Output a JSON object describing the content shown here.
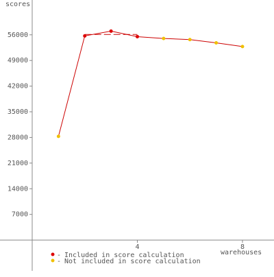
{
  "chart_data": {
    "type": "line",
    "y_label": "scores",
    "x_label": "warehouses",
    "x": [
      1,
      2,
      3,
      4,
      5,
      6,
      7,
      8
    ],
    "values": [
      28300,
      55700,
      57000,
      55500,
      55000,
      54700,
      53800,
      52800
    ],
    "included": [
      false,
      true,
      true,
      true,
      false,
      false,
      false,
      false
    ],
    "line_color": "#cc0000",
    "score": 56100,
    "legend": [
      {
        "name": "Included in score calculation",
        "color": "#dd0000"
      },
      {
        "name": "Not included in score calculation",
        "color": "#f0c000"
      }
    ],
    "xlim": [
      0,
      9.2
    ],
    "xticks": [
      4,
      8
    ],
    "ylim": [
      -8400,
      65500
    ],
    "yticks": [
      7000,
      14000,
      21000,
      28000,
      35000,
      42000,
      49000,
      56000
    ]
  }
}
